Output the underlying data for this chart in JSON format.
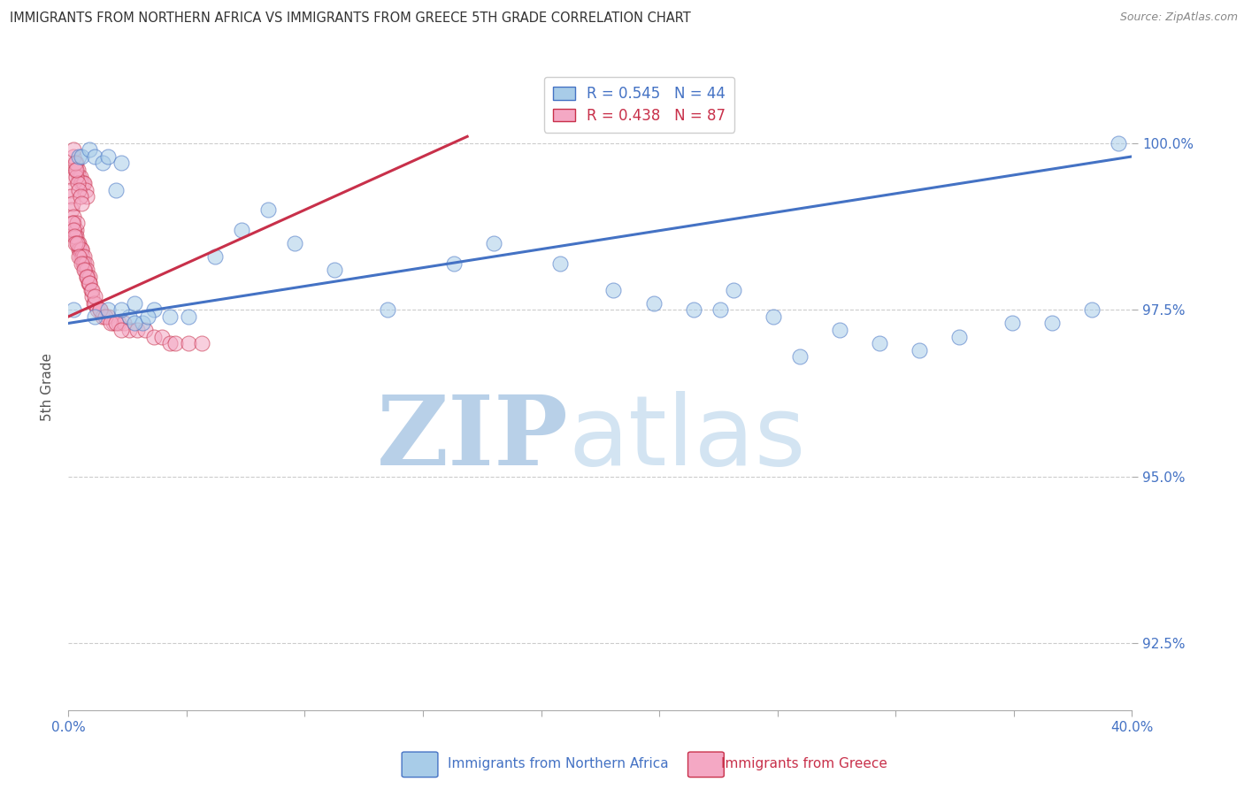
{
  "title": "IMMIGRANTS FROM NORTHERN AFRICA VS IMMIGRANTS FROM GREECE 5TH GRADE CORRELATION CHART",
  "source": "Source: ZipAtlas.com",
  "xlabel_blue": "Immigrants from Northern Africa",
  "xlabel_pink": "Immigrants from Greece",
  "ylabel": "5th Grade",
  "xmin": 0.0,
  "xmax": 40.0,
  "ymin": 91.5,
  "ymax": 101.2,
  "yticks": [
    92.5,
    95.0,
    97.5,
    100.0
  ],
  "xtick_positions": [
    0.0,
    4.444,
    8.889,
    13.333,
    17.778,
    22.222,
    26.667,
    31.111,
    35.556,
    40.0
  ],
  "r_blue": 0.545,
  "n_blue": 44,
  "r_pink": 0.438,
  "n_pink": 87,
  "color_blue": "#a8cce8",
  "color_pink": "#f4a8c4",
  "color_blue_line": "#4472c4",
  "color_pink_line": "#c8304a",
  "watermark_zip_color": "#c8ddf0",
  "watermark_atlas_color": "#d8e8f4",
  "blue_x": [
    0.2,
    0.4,
    0.5,
    0.8,
    1.0,
    1.3,
    1.5,
    1.8,
    2.0,
    2.3,
    2.5,
    2.8,
    3.2,
    3.8,
    4.5,
    5.5,
    6.5,
    7.5,
    8.5,
    10.0,
    12.0,
    14.5,
    16.0,
    18.5,
    20.5,
    22.0,
    23.5,
    24.5,
    25.0,
    26.5,
    27.5,
    29.0,
    30.5,
    32.0,
    33.5,
    35.5,
    37.0,
    38.5,
    39.5,
    1.0,
    1.5,
    2.0,
    2.5,
    3.0
  ],
  "blue_y": [
    97.5,
    99.8,
    99.8,
    99.9,
    99.8,
    99.7,
    99.8,
    99.3,
    99.7,
    97.4,
    97.6,
    97.3,
    97.5,
    97.4,
    97.4,
    98.3,
    98.7,
    99.0,
    98.5,
    98.1,
    97.5,
    98.2,
    98.5,
    98.2,
    97.8,
    97.6,
    97.5,
    97.5,
    97.8,
    97.4,
    96.8,
    97.2,
    97.0,
    96.9,
    97.1,
    97.3,
    97.3,
    97.5,
    100.0,
    97.4,
    97.5,
    97.5,
    97.3,
    97.4
  ],
  "pink_x": [
    0.05,
    0.08,
    0.1,
    0.13,
    0.15,
    0.18,
    0.2,
    0.22,
    0.25,
    0.28,
    0.3,
    0.32,
    0.35,
    0.38,
    0.4,
    0.42,
    0.45,
    0.48,
    0.5,
    0.52,
    0.55,
    0.58,
    0.6,
    0.63,
    0.65,
    0.68,
    0.7,
    0.73,
    0.75,
    0.78,
    0.8,
    0.85,
    0.9,
    0.95,
    1.0,
    1.1,
    1.2,
    1.3,
    1.5,
    1.7,
    1.9,
    2.1,
    2.3,
    2.6,
    2.9,
    3.2,
    3.5,
    3.8,
    4.0,
    4.5,
    5.0,
    0.3,
    0.35,
    0.4,
    0.45,
    0.5,
    0.55,
    0.6,
    0.65,
    0.7,
    0.2,
    0.25,
    0.3,
    0.35,
    0.4,
    0.45,
    0.5,
    0.2,
    0.25,
    0.3,
    0.15,
    0.18,
    0.22,
    0.27,
    0.32,
    0.4,
    0.5,
    0.6,
    0.7,
    0.8,
    0.9,
    1.0,
    1.2,
    1.4,
    1.6,
    1.8,
    2.0
  ],
  "pink_y": [
    99.5,
    99.3,
    99.2,
    99.0,
    99.1,
    98.9,
    98.8,
    98.7,
    98.6,
    98.7,
    98.6,
    98.8,
    98.5,
    98.5,
    98.4,
    98.4,
    98.3,
    98.4,
    98.4,
    98.3,
    98.2,
    98.3,
    98.2,
    98.1,
    98.2,
    98.1,
    98.0,
    98.0,
    97.9,
    98.0,
    97.9,
    97.8,
    97.7,
    97.6,
    97.6,
    97.5,
    97.5,
    97.4,
    97.4,
    97.3,
    97.3,
    97.3,
    97.2,
    97.2,
    97.2,
    97.1,
    97.1,
    97.0,
    97.0,
    97.0,
    97.0,
    99.7,
    99.6,
    99.5,
    99.5,
    99.4,
    99.4,
    99.4,
    99.3,
    99.2,
    99.8,
    99.6,
    99.5,
    99.4,
    99.3,
    99.2,
    99.1,
    99.9,
    99.7,
    99.6,
    98.8,
    98.7,
    98.6,
    98.5,
    98.5,
    98.3,
    98.2,
    98.1,
    98.0,
    97.9,
    97.8,
    97.7,
    97.5,
    97.4,
    97.3,
    97.3,
    97.2
  ],
  "trend_blue_x0": 0.0,
  "trend_blue_x1": 40.0,
  "trend_blue_y0": 97.3,
  "trend_blue_y1": 99.8,
  "trend_pink_x0": 0.0,
  "trend_pink_x1": 15.0,
  "trend_pink_y0": 97.4,
  "trend_pink_y1": 100.1
}
